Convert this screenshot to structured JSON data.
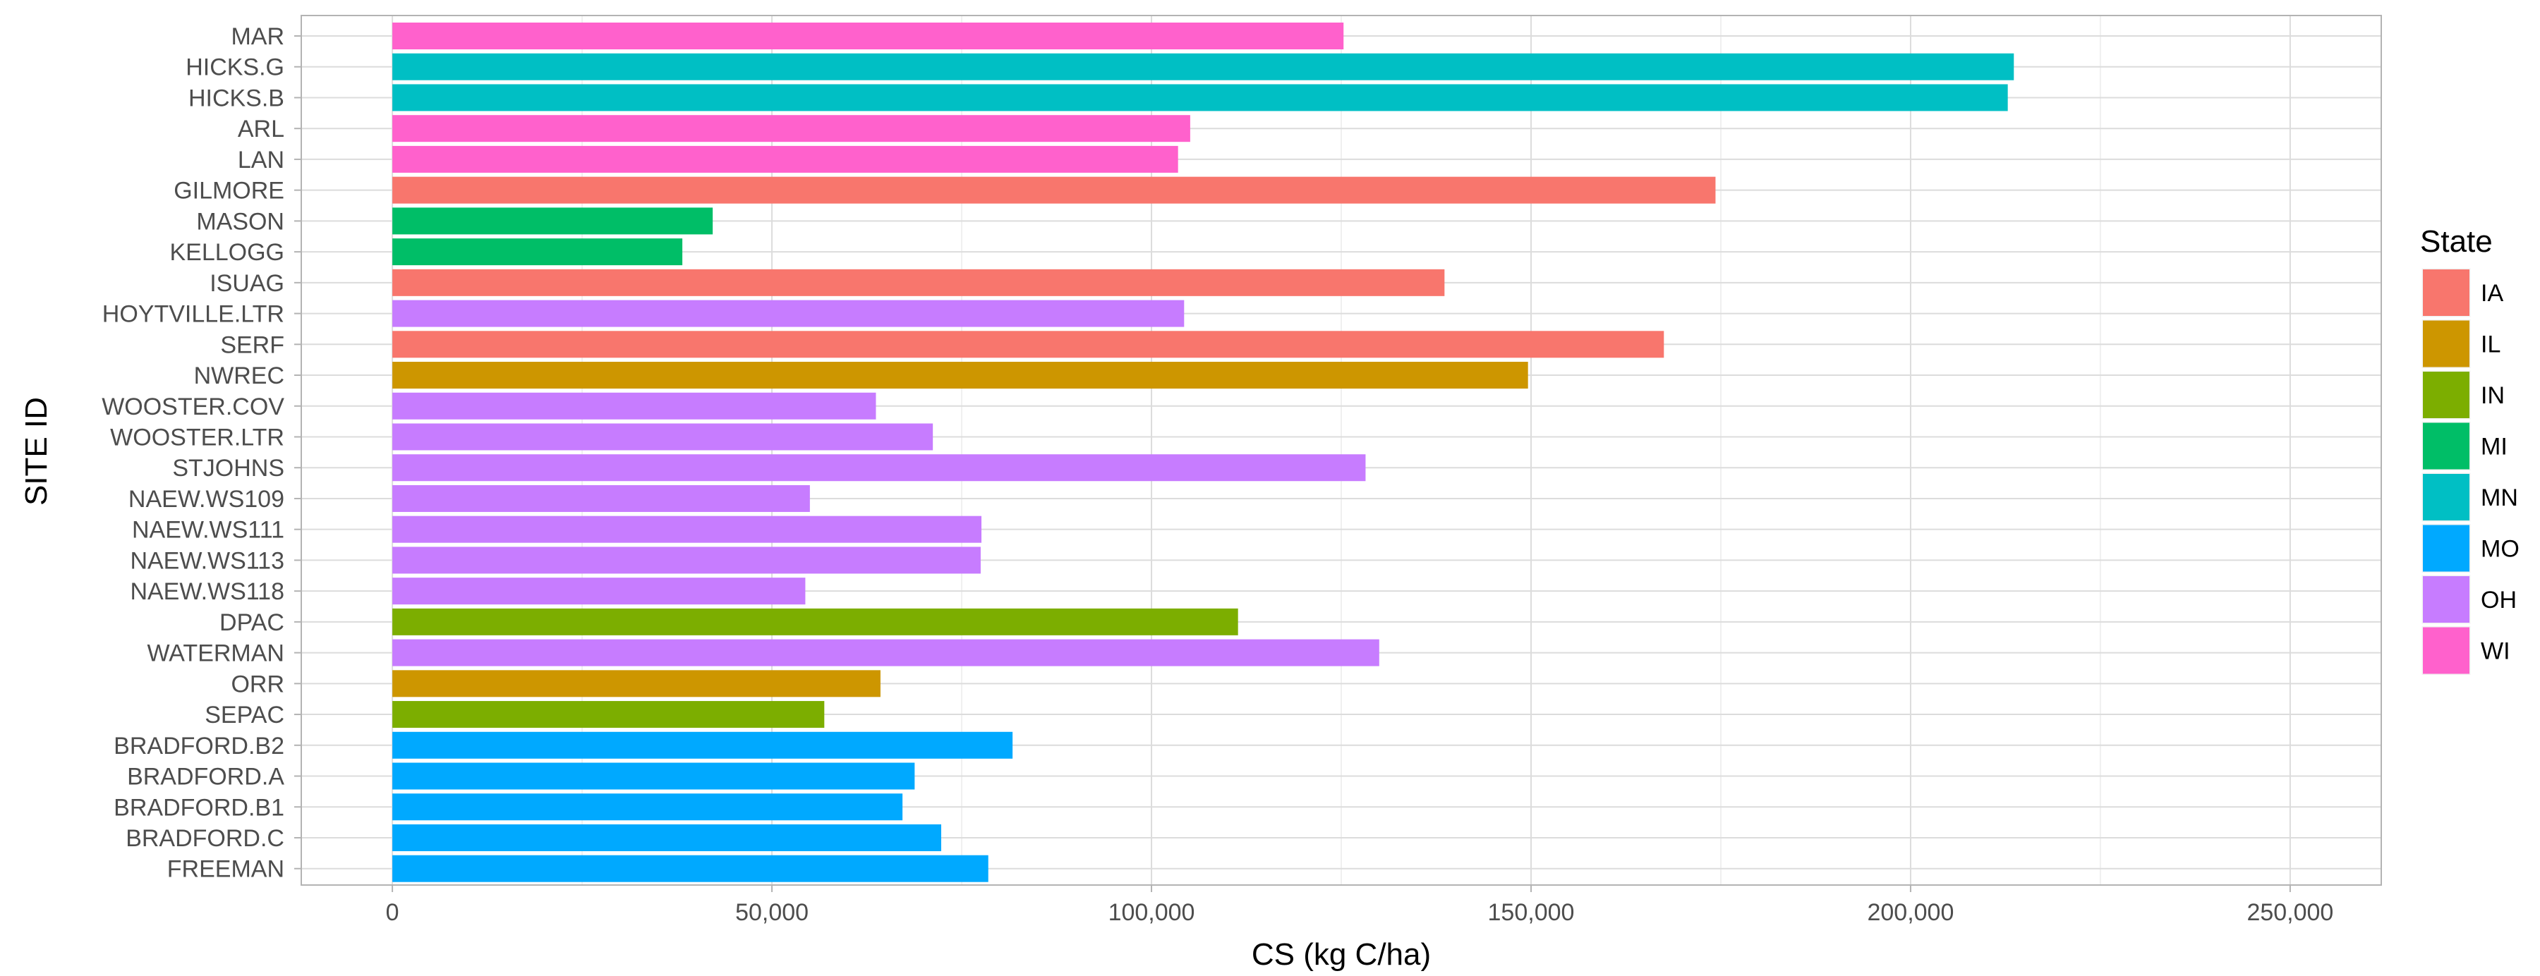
{
  "chart_data": {
    "type": "bar",
    "orientation": "horizontal",
    "title": "",
    "xlabel": "CS (kg C/ha)",
    "ylabel": "SITE ID",
    "xlim": [
      -12000,
      262000
    ],
    "xticks": [
      0,
      50000,
      100000,
      150000,
      200000,
      250000
    ],
    "xtick_labels": [
      "0",
      "50,000",
      "100,000",
      "150,000",
      "200,000",
      "250,000"
    ],
    "grid": true,
    "legend": {
      "title": "State",
      "position": "right",
      "entries": [
        {
          "label": "IA",
          "color": "#F8766D"
        },
        {
          "label": "IL",
          "color": "#CD9600"
        },
        {
          "label": "IN",
          "color": "#7CAE00"
        },
        {
          "label": "MI",
          "color": "#00BE67"
        },
        {
          "label": "MN",
          "color": "#00BFC4"
        },
        {
          "label": "MO",
          "color": "#00A9FF"
        },
        {
          "label": "OH",
          "color": "#C77CFF"
        },
        {
          "label": "WI",
          "color": "#FF61CC"
        }
      ]
    },
    "categories": [
      "MAR",
      "HICKS.G",
      "HICKS.B",
      "ARL",
      "LAN",
      "GILMORE",
      "MASON",
      "KELLOGG",
      "ISUAG",
      "HOYTVILLE.LTR",
      "SERF",
      "NWREC",
      "WOOSTER.COV",
      "WOOSTER.LTR",
      "STJOHNS",
      "NAEW.WS109",
      "NAEW.WS111",
      "NAEW.WS113",
      "NAEW.WS118",
      "DPAC",
      "WATERMAN",
      "ORR",
      "SEPAC",
      "BRADFORD.B2",
      "BRADFORD.A",
      "BRADFORD.B1",
      "BRADFORD.C",
      "FREEMAN"
    ],
    "values": [
      125300,
      213600,
      212800,
      105100,
      103500,
      174300,
      42200,
      38200,
      138600,
      104300,
      167500,
      149600,
      63700,
      71200,
      128200,
      55000,
      77600,
      77500,
      54400,
      111400,
      130000,
      64300,
      56900,
      81700,
      68800,
      67200,
      72300,
      78500
    ],
    "states": [
      "WI",
      "MN",
      "MN",
      "WI",
      "WI",
      "IA",
      "MI",
      "MI",
      "IA",
      "OH",
      "IA",
      "IL",
      "OH",
      "OH",
      "OH",
      "OH",
      "OH",
      "OH",
      "OH",
      "IN",
      "OH",
      "IL",
      "IN",
      "MO",
      "MO",
      "MO",
      "MO",
      "MO"
    ]
  }
}
